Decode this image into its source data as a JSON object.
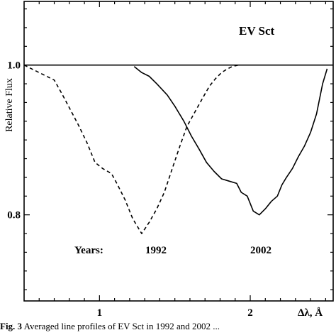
{
  "chart_data": {
    "type": "line",
    "star_label": "EV Sct",
    "ylabel": "Relative Flux",
    "xlabel": "Δλ, Å",
    "xlim": [
      0.5,
      2.55
    ],
    "ylim": [
      0.685,
      1.085
    ],
    "x_ticks": [
      1,
      2
    ],
    "x_tick_labels": [
      "1",
      "2"
    ],
    "y_ticks": [
      0.8,
      1.0
    ],
    "y_tick_labels": [
      "0.8",
      "1.0"
    ],
    "reference_line": 1.0,
    "years_label": "Years:",
    "series": [
      {
        "name": "1992",
        "style": "dashed",
        "x": [
          0.5,
          0.7,
          0.75,
          0.8,
          0.86,
          0.92,
          0.97,
          1.02,
          1.08,
          1.12,
          1.17,
          1.22,
          1.28,
          1.33,
          1.38,
          1.43,
          1.48,
          1.53,
          1.58,
          1.64,
          1.69,
          1.73,
          1.77,
          1.81,
          1.85,
          1.88,
          1.92
        ],
        "y": [
          1.0,
          0.98,
          0.962,
          0.943,
          0.92,
          0.895,
          0.87,
          0.862,
          0.855,
          0.84,
          0.82,
          0.795,
          0.775,
          0.79,
          0.808,
          0.83,
          0.86,
          0.89,
          0.918,
          0.94,
          0.958,
          0.972,
          0.982,
          0.99,
          0.995,
          0.998,
          1.0
        ]
      },
      {
        "name": "2002",
        "style": "solid",
        "x": [
          1.23,
          1.28,
          1.33,
          1.38,
          1.45,
          1.5,
          1.56,
          1.61,
          1.66,
          1.71,
          1.76,
          1.81,
          1.86,
          1.91,
          1.94,
          1.98,
          2.02,
          2.06,
          2.1,
          2.14,
          2.18,
          2.21,
          2.24,
          2.28,
          2.32,
          2.36,
          2.4,
          2.44,
          2.48,
          2.51
        ],
        "y": [
          0.998,
          0.99,
          0.985,
          0.975,
          0.96,
          0.945,
          0.925,
          0.905,
          0.888,
          0.87,
          0.858,
          0.848,
          0.845,
          0.842,
          0.83,
          0.825,
          0.805,
          0.8,
          0.808,
          0.818,
          0.825,
          0.84,
          0.85,
          0.862,
          0.878,
          0.892,
          0.91,
          0.935,
          0.975,
          0.995
        ]
      }
    ]
  },
  "caption": {
    "fig_label": "Fig. 3",
    "text": "Averaged line profiles of EV Sct in 1992 and 2002 ..."
  }
}
